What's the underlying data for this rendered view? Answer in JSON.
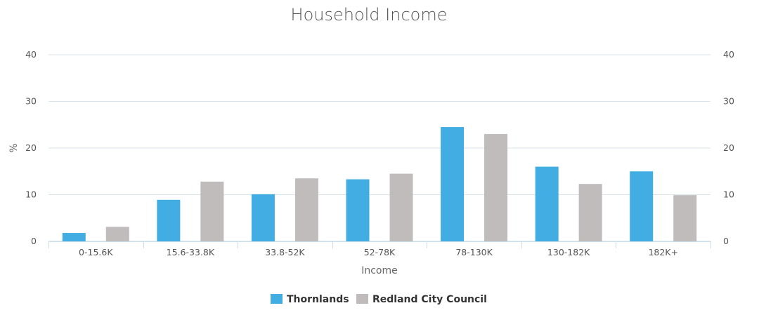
{
  "chart_data": {
    "type": "bar",
    "title": "Household Income",
    "xlabel": "Income",
    "ylabel": "%",
    "ylim": [
      0,
      40
    ],
    "yticks": [
      0,
      10,
      20,
      30,
      40
    ],
    "secondary_y_axis": true,
    "grid": true,
    "legend_position": "bottom-center",
    "categories": [
      "0-15.6K",
      "15.6-33.8K",
      "33.8-52K",
      "52-78K",
      "78-130K",
      "130-182K",
      "182K+"
    ],
    "series": [
      {
        "name": "Thornlands",
        "color": "#41ADE2",
        "values": [
          1.8,
          8.9,
          10.1,
          13.3,
          24.5,
          16.0,
          15.0
        ]
      },
      {
        "name": "Redland City Council",
        "color": "#C0BCBC",
        "values": [
          3.1,
          12.8,
          13.5,
          14.5,
          23.0,
          12.3,
          9.9
        ]
      }
    ]
  }
}
